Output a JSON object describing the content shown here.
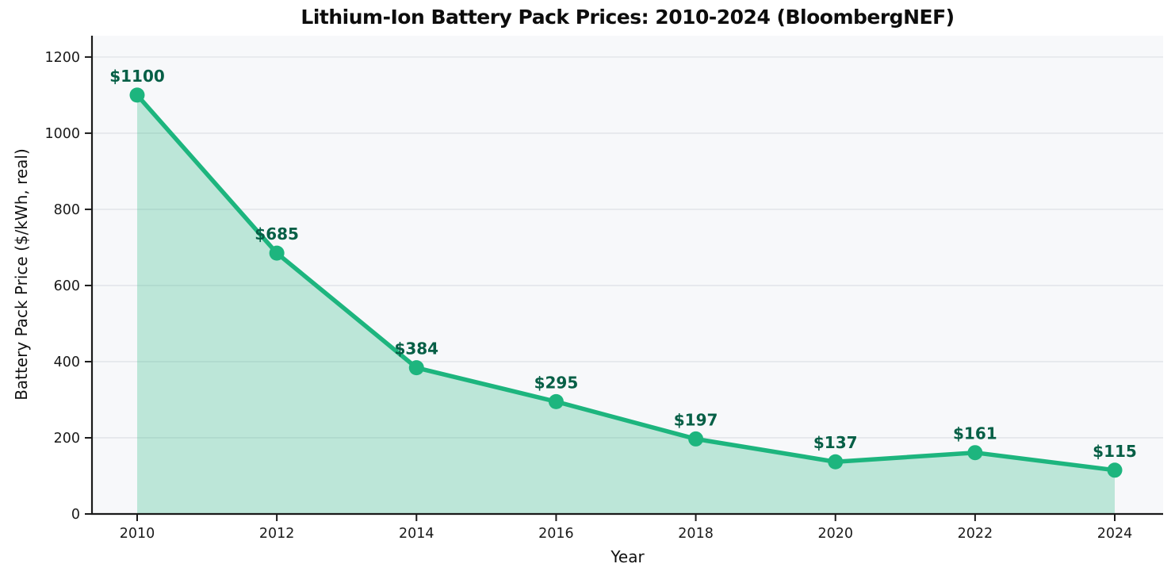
{
  "chart_data": {
    "type": "line",
    "title": "Lithium-Ion Battery Pack Prices: 2010-2024 (BloombergNEF)",
    "xlabel": "Year",
    "ylabel": "Battery Pack Price ($/kWh, real)",
    "x": [
      2010,
      2012,
      2014,
      2016,
      2018,
      2020,
      2022,
      2024
    ],
    "series": [
      {
        "name": "Battery pack price ($/kWh, real)",
        "values": [
          1100,
          685,
          384,
          295,
          197,
          137,
          161,
          115
        ]
      }
    ],
    "point_labels": [
      "$1100",
      "$685",
      "$384",
      "$295",
      "$197",
      "$137",
      "$161",
      "$115"
    ],
    "xticks": [
      "2010",
      "2012",
      "2014",
      "2016",
      "2018",
      "2020",
      "2022",
      "2024"
    ],
    "yticks": [
      0,
      200,
      400,
      600,
      800,
      1000,
      1200
    ],
    "ylim": [
      0,
      1256
    ],
    "grid": "horizontal",
    "legend": "none",
    "area_fill": true,
    "colors": {
      "line": "#1db57e",
      "fill": "#1db57e",
      "fill_opacity": 0.27,
      "point_label": "#065f46",
      "plot_background": "#f7f8fa",
      "grid_line": "#e4e6ea",
      "axis_line": "#1a1a1a",
      "tick_label": "#1a1a1a"
    }
  }
}
